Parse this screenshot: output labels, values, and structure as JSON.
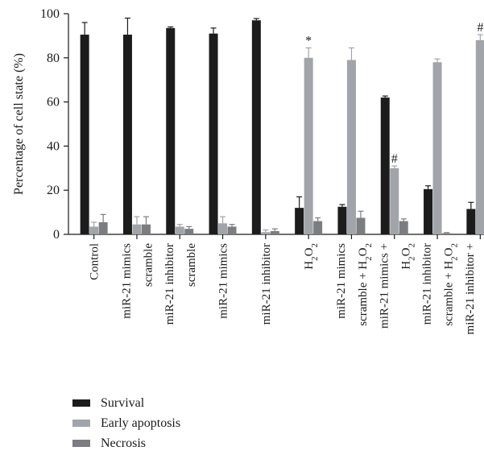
{
  "chart_data": {
    "type": "bar",
    "ylabel": "Percentage of cell state (%)",
    "xlabel": "",
    "title": "",
    "ylim": [
      0,
      100
    ],
    "yticks": [
      0,
      20,
      40,
      60,
      80,
      100
    ],
    "grid": false,
    "legend_position": "bottom-left",
    "categories": [
      {
        "lines": [
          "Control"
        ]
      },
      {
        "lines": [
          "miR-21 mimics",
          "scramble"
        ]
      },
      {
        "lines": [
          "miR-21 inhibitor",
          "scramble"
        ]
      },
      {
        "lines": [
          "miR-21 mimics"
        ]
      },
      {
        "lines": [
          "miR-21 inhibitor"
        ]
      },
      {
        "lines": [
          "H₂O₂"
        ]
      },
      {
        "lines": [
          "miR-21 mimics",
          "scramble + H₂O₂"
        ]
      },
      {
        "lines": [
          "miR-21 mimics +",
          "H₂O₂"
        ]
      },
      {
        "lines": [
          "miR-21 inhibitor",
          "scramble + H₂O₂"
        ]
      },
      {
        "lines": [
          "miR-21 inhibitor +",
          "H₂O₂"
        ]
      }
    ],
    "series": [
      {
        "name": "Survival",
        "color": "#1c1c1c",
        "values": [
          90.5,
          90.5,
          93.5,
          91,
          97,
          12,
          12.5,
          62,
          20.5,
          11.5
        ],
        "errors": [
          5.5,
          7.5,
          0.5,
          2.5,
          0.8,
          5,
          1,
          0.7,
          1.5,
          3
        ]
      },
      {
        "name": "Early apoptosis",
        "color": "#a1a4a9",
        "values": [
          3.5,
          4.5,
          3.5,
          5,
          1,
          80,
          79,
          30,
          78,
          88
        ],
        "errors": [
          2,
          3.5,
          1,
          3,
          1,
          4.5,
          5.5,
          1,
          1.5,
          2.5
        ]
      },
      {
        "name": "Necrosis",
        "color": "#7b7d80",
        "values": [
          5.5,
          4.5,
          2.5,
          3.5,
          1.5,
          6,
          7.5,
          6,
          0.5,
          0.5
        ],
        "errors": [
          3.5,
          3.5,
          1,
          1,
          1,
          1.5,
          3,
          1,
          0.3,
          0.2
        ]
      }
    ],
    "annotations": [
      {
        "text": "*",
        "category_index": 5,
        "series_index": 1
      },
      {
        "text": "#",
        "category_index": 7,
        "series_index": 1
      },
      {
        "text": "#",
        "category_index": 9,
        "series_index": 1
      }
    ]
  },
  "legend": {
    "items": [
      {
        "label": "Survival",
        "color": "#1c1c1c"
      },
      {
        "label": "Early apoptosis",
        "color": "#a1a4a9"
      },
      {
        "label": "Necrosis",
        "color": "#7b7d80"
      }
    ]
  }
}
